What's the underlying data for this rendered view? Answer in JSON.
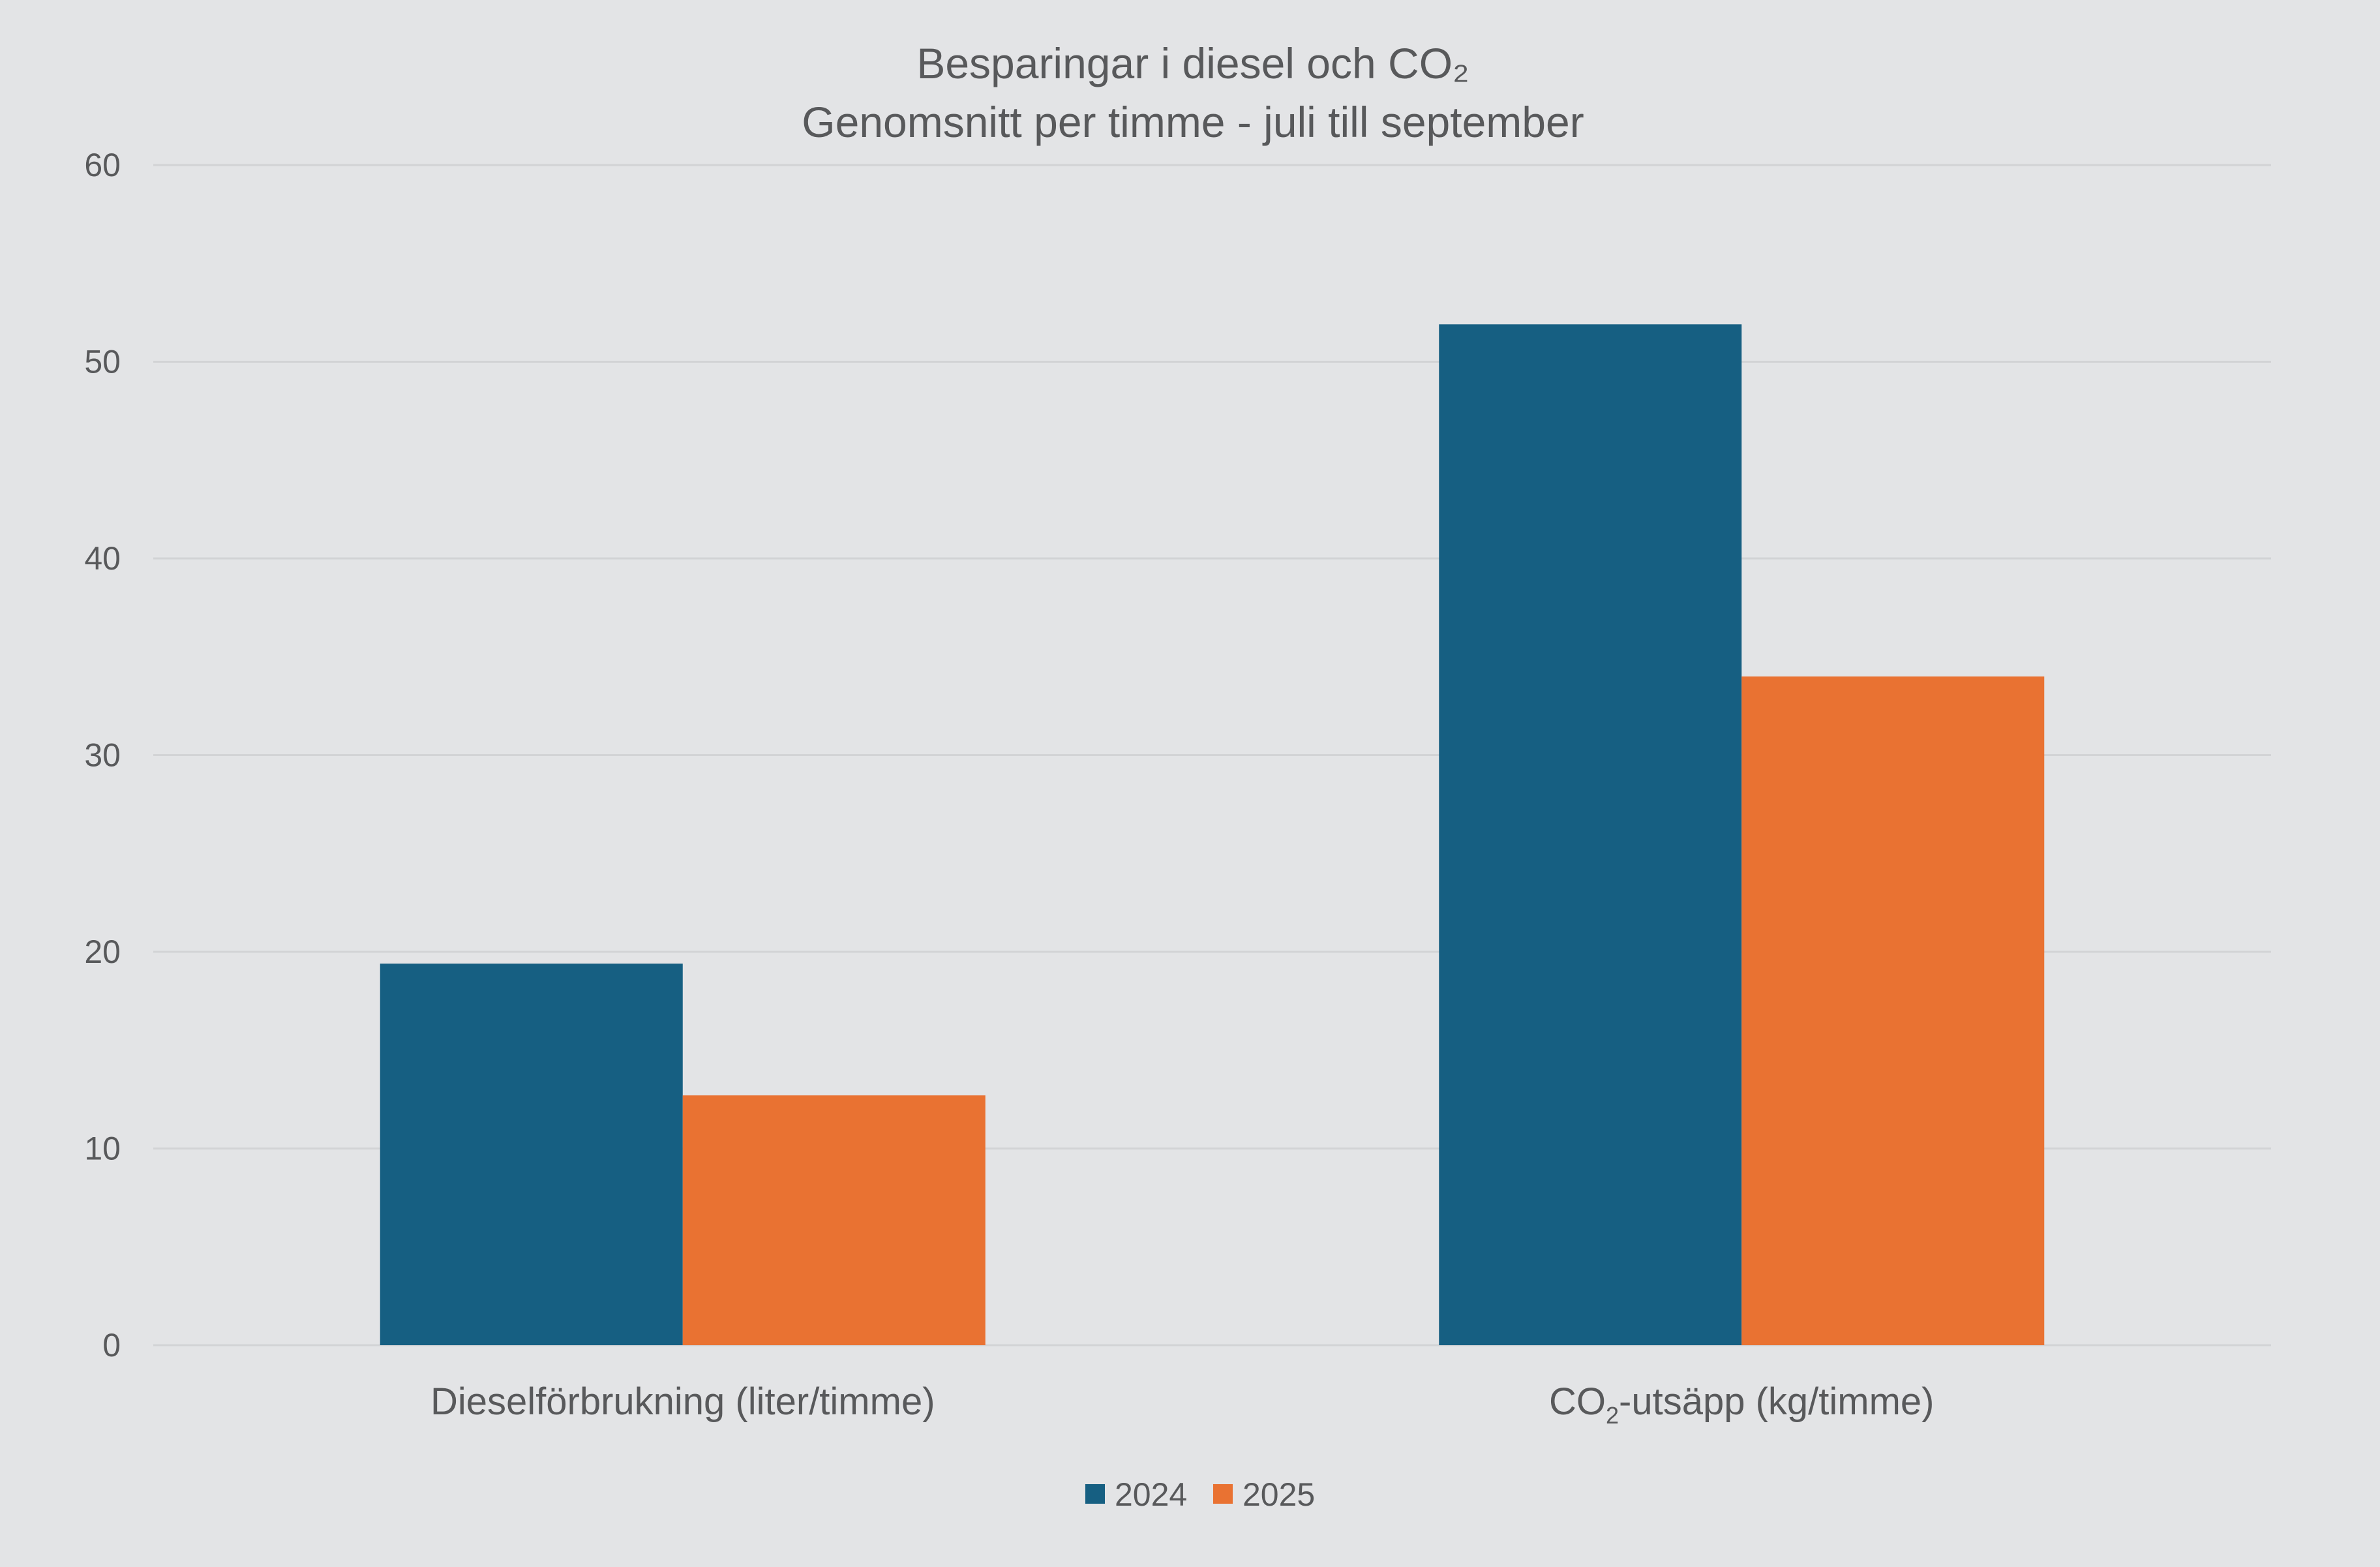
{
  "chart_data": {
    "type": "bar",
    "title": "Besparingar i diesel och CO₂",
    "subtitle": "Genomsnitt per timme - juli till september",
    "categories": [
      {
        "label": "Dieselförbrukning (liter/timme)"
      },
      {
        "label_prefix": "CO",
        "label_sub": "2",
        "label_suffix": "-utsäpp (kg/timme)"
      }
    ],
    "series": [
      {
        "name": "2024",
        "color": "#165f82",
        "values": [
          19.4,
          51.9
        ]
      },
      {
        "name": "2025",
        "color": "#e97232",
        "values": [
          12.7,
          34.0
        ]
      }
    ],
    "ylim": [
      0,
      60
    ],
    "yticks": [
      "0",
      "10",
      "20",
      "30",
      "40",
      "50",
      "60"
    ],
    "xlabel": "",
    "ylabel": "",
    "grid": true,
    "legend_position": "bottom-center"
  },
  "colors": {
    "background": "#e3e4e6",
    "gridline": "#d2d3d5",
    "text": "#58595b"
  }
}
